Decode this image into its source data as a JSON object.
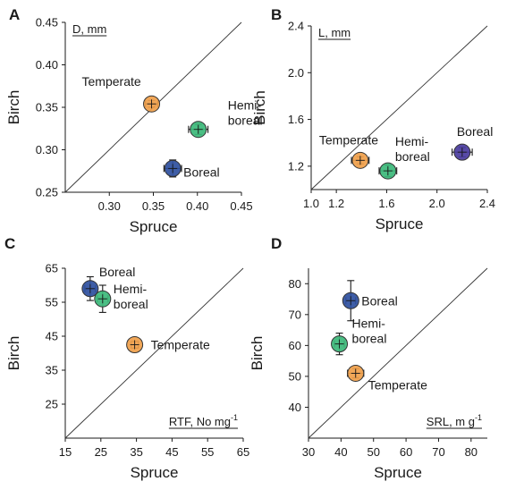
{
  "chart_data": [
    {
      "type": "scatter",
      "panel_letter": "A",
      "unit_label": "D, mm",
      "xlabel": "Spruce",
      "ylabel": "Birch",
      "xlim": [
        0.25,
        0.45
      ],
      "ylim": [
        0.25,
        0.45
      ],
      "xticks": [
        "0.30",
        "0.35",
        "0.40",
        "0.45"
      ],
      "yticks": [
        "0.25",
        "0.30",
        "0.35",
        "0.40",
        "0.45"
      ],
      "identity_line": true,
      "points": [
        {
          "label": [
            "Temperate"
          ],
          "x": 0.348,
          "y": 0.354,
          "xerr": 0.007,
          "yerr": 0.004,
          "color": "#f0a04a"
        },
        {
          "label": [
            "Hemi-",
            "boreal"
          ],
          "x": 0.401,
          "y": 0.324,
          "xerr": 0.011,
          "yerr": 0.006,
          "color": "#3cb87a"
        },
        {
          "label": [
            "Boreal"
          ],
          "x": 0.372,
          "y": 0.278,
          "xerr": 0.01,
          "yerr": 0.01,
          "color": "#2e4f9e"
        }
      ]
    },
    {
      "type": "scatter",
      "panel_letter": "B",
      "unit_label": "L, mm",
      "xlabel": "Spruce",
      "ylabel": "Birch",
      "xlim": [
        1.0,
        2.4
      ],
      "ylim": [
        1.0,
        2.4
      ],
      "xticks": [
        "1.0",
        "1.2",
        "1.6",
        "2.0",
        "2.4"
      ],
      "yticks": [
        "1.2",
        "1.6",
        "2.0",
        "2.4"
      ],
      "identity_line": true,
      "points": [
        {
          "label": [
            "Temperate"
          ],
          "x": 1.39,
          "y": 1.25,
          "xerr": 0.07,
          "yerr": 0.03,
          "color": "#f0a04a"
        },
        {
          "label": [
            "Hemi-",
            "boreal"
          ],
          "x": 1.61,
          "y": 1.16,
          "xerr": 0.07,
          "yerr": 0.05,
          "color": "#3cb87a"
        },
        {
          "label": [
            "Boreal"
          ],
          "x": 2.2,
          "y": 1.32,
          "xerr": 0.08,
          "yerr": 0.04,
          "color": "#4a3c9e"
        }
      ]
    },
    {
      "type": "scatter",
      "panel_letter": "C",
      "unit_label": "RTF, No mg",
      "unit_superscript": "-1",
      "xlabel": "Spruce",
      "ylabel": "Birch",
      "xlim": [
        15,
        65
      ],
      "ylim": [
        15,
        65
      ],
      "xticks": [
        "15",
        "25",
        "35",
        "45",
        "55",
        "65"
      ],
      "yticks": [
        "25",
        "35",
        "45",
        "55",
        "65"
      ],
      "identity_line": true,
      "points": [
        {
          "label": [
            "Boreal"
          ],
          "x": 22.0,
          "y": 59.0,
          "xerr": 1.5,
          "yerr": 3.5,
          "color": "#2e4f9e"
        },
        {
          "label": [
            "Hemi-",
            "boreal"
          ],
          "x": 25.5,
          "y": 56.0,
          "xerr": 1.5,
          "yerr": 4.0,
          "color": "#3cb87a"
        },
        {
          "label": [
            "Temperate"
          ],
          "x": 34.5,
          "y": 42.5,
          "xerr": 1.0,
          "yerr": 1.0,
          "color": "#f0a04a"
        }
      ]
    },
    {
      "type": "scatter",
      "panel_letter": "D",
      "unit_label": "SRL, m g",
      "unit_superscript": "-1",
      "xlabel": "Spruce",
      "ylabel": "Birch",
      "xlim": [
        30,
        85
      ],
      "ylim": [
        30,
        85
      ],
      "xticks": [
        "30",
        "40",
        "50",
        "60",
        "70",
        "80"
      ],
      "yticks": [
        "40",
        "50",
        "60",
        "70",
        "80"
      ],
      "identity_line": true,
      "points": [
        {
          "label": [
            "Boreal"
          ],
          "x": 43.0,
          "y": 74.5,
          "xerr": 1.5,
          "yerr": 6.5,
          "color": "#2e4f9e"
        },
        {
          "label": [
            "Hemi-",
            "boreal"
          ],
          "x": 39.5,
          "y": 60.5,
          "xerr": 1.5,
          "yerr": 3.5,
          "color": "#3cb87a"
        },
        {
          "label": [
            "Temperate"
          ],
          "x": 44.5,
          "y": 51.0,
          "xerr": 2.5,
          "yerr": 1.5,
          "color": "#f0a04a"
        }
      ]
    }
  ]
}
